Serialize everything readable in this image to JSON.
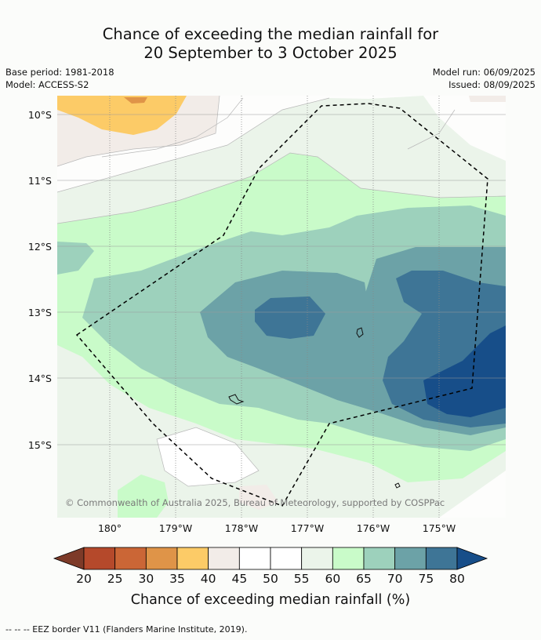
{
  "header": {
    "title_line1": "Chance of exceeding the median rainfall for",
    "title_line2": "20 September to 3 October 2025",
    "base_period": "Base period: 1981-2018",
    "model": "Model: ACCESS-S2",
    "model_run": "Model run: 06/09/2025",
    "issued": "Issued: 08/09/2025"
  },
  "chart_data": {
    "type": "heatmap",
    "title": "Chance of exceeding the median rainfall for 20 September to 3 October 2025",
    "xlabel": "",
    "ylabel": "",
    "x_ticks": [
      "180°",
      "179°W",
      "178°W",
      "177°W",
      "176°W",
      "175°W"
    ],
    "y_ticks": [
      "10°S",
      "11°S",
      "12°S",
      "13°S",
      "14°S",
      "15°S"
    ],
    "colorbar": {
      "label": "Chance of exceeding median rainfall (%)",
      "levels": [
        20,
        25,
        30,
        35,
        40,
        45,
        50,
        55,
        60,
        65,
        70,
        75,
        80
      ],
      "colors": [
        "#7d3a28",
        "#b5492b",
        "#cb6636",
        "#df9448",
        "#fccb67",
        "#f2ece8",
        "#ffffff",
        "#ffffff",
        "#ebf4ea",
        "#c9fbc9",
        "#9dd1bc",
        "#6ca2a7",
        "#3e7596",
        "#174e89"
      ]
    },
    "fields_percent": [
      {
        "region": "northwest corner near 10°S 180°",
        "value": "35-40"
      },
      {
        "region": "central ~13°S 177.5°W",
        "value": "70-75"
      },
      {
        "region": "east ~12.5-13.5°S 175.5°W",
        "value": "70-75"
      },
      {
        "region": "southeast ~14°S 174.5°W",
        "value": "75-80"
      },
      {
        "region": "band 12-14.5°S",
        "value": "60-70"
      },
      {
        "region": "southwest ~15.5°S 178.5°W",
        "value": "45-55"
      }
    ]
  },
  "credit": "© Commonwealth of Australia 2025, Bureau of Meteorology, supported by COSPPac",
  "footnote": "--  --  -- EEZ border V11 (Flanders Marine Institute, 2019)."
}
